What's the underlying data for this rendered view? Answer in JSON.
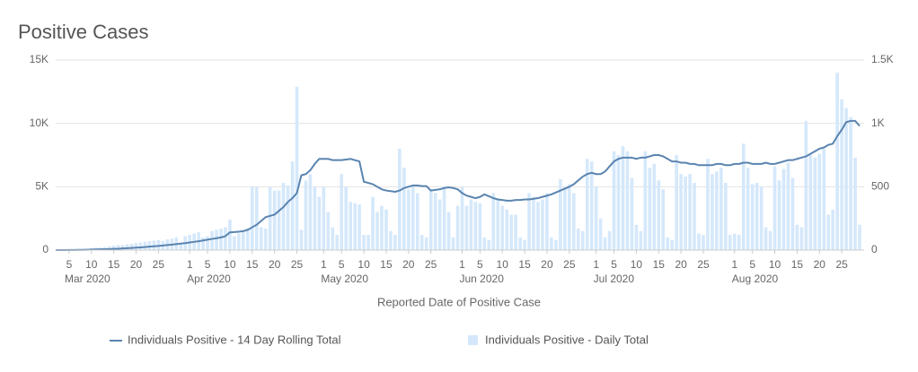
{
  "chart_data": {
    "type": "combo",
    "title": "Positive Cases",
    "x_label": "Reported Date of Positive Case",
    "grid": true,
    "legend": "bottom",
    "x": [
      "2020-03-02",
      "2020-03-03",
      "2020-03-04",
      "2020-03-05",
      "2020-03-06",
      "2020-03-07",
      "2020-03-08",
      "2020-03-09",
      "2020-03-10",
      "2020-03-11",
      "2020-03-12",
      "2020-03-13",
      "2020-03-14",
      "2020-03-15",
      "2020-03-16",
      "2020-03-17",
      "2020-03-18",
      "2020-03-19",
      "2020-03-20",
      "2020-03-21",
      "2020-03-22",
      "2020-03-23",
      "2020-03-24",
      "2020-03-25",
      "2020-03-26",
      "2020-03-27",
      "2020-03-28",
      "2020-03-29",
      "2020-03-30",
      "2020-03-31",
      "2020-04-01",
      "2020-04-02",
      "2020-04-03",
      "2020-04-04",
      "2020-04-05",
      "2020-04-06",
      "2020-04-07",
      "2020-04-08",
      "2020-04-09",
      "2020-04-10",
      "2020-04-11",
      "2020-04-12",
      "2020-04-13",
      "2020-04-14",
      "2020-04-15",
      "2020-04-16",
      "2020-04-17",
      "2020-04-18",
      "2020-04-19",
      "2020-04-20",
      "2020-04-21",
      "2020-04-22",
      "2020-04-23",
      "2020-04-24",
      "2020-04-25",
      "2020-04-26",
      "2020-04-27",
      "2020-04-28",
      "2020-04-29",
      "2020-04-30",
      "2020-05-01",
      "2020-05-02",
      "2020-05-03",
      "2020-05-04",
      "2020-05-05",
      "2020-05-06",
      "2020-05-07",
      "2020-05-08",
      "2020-05-09",
      "2020-05-10",
      "2020-05-11",
      "2020-05-12",
      "2020-05-13",
      "2020-05-14",
      "2020-05-15",
      "2020-05-16",
      "2020-05-17",
      "2020-05-18",
      "2020-05-19",
      "2020-05-20",
      "2020-05-21",
      "2020-05-22",
      "2020-05-23",
      "2020-05-24",
      "2020-05-25",
      "2020-05-26",
      "2020-05-27",
      "2020-05-28",
      "2020-05-29",
      "2020-05-30",
      "2020-05-31",
      "2020-06-01",
      "2020-06-02",
      "2020-06-03",
      "2020-06-04",
      "2020-06-05",
      "2020-06-06",
      "2020-06-07",
      "2020-06-08",
      "2020-06-09",
      "2020-06-10",
      "2020-06-11",
      "2020-06-12",
      "2020-06-13",
      "2020-06-14",
      "2020-06-15",
      "2020-06-16",
      "2020-06-17",
      "2020-06-18",
      "2020-06-19",
      "2020-06-20",
      "2020-06-21",
      "2020-06-22",
      "2020-06-23",
      "2020-06-24",
      "2020-06-25",
      "2020-06-26",
      "2020-06-27",
      "2020-06-28",
      "2020-06-29",
      "2020-06-30",
      "2020-07-01",
      "2020-07-02",
      "2020-07-03",
      "2020-07-04",
      "2020-07-05",
      "2020-07-06",
      "2020-07-07",
      "2020-07-08",
      "2020-07-09",
      "2020-07-10",
      "2020-07-11",
      "2020-07-12",
      "2020-07-13",
      "2020-07-14",
      "2020-07-15",
      "2020-07-16",
      "2020-07-17",
      "2020-07-18",
      "2020-07-19",
      "2020-07-20",
      "2020-07-21",
      "2020-07-22",
      "2020-07-23",
      "2020-07-24",
      "2020-07-25",
      "2020-07-26",
      "2020-07-27",
      "2020-07-28",
      "2020-07-29",
      "2020-07-30",
      "2020-07-31",
      "2020-08-01",
      "2020-08-02",
      "2020-08-03",
      "2020-08-04",
      "2020-08-05",
      "2020-08-06",
      "2020-08-07",
      "2020-08-08",
      "2020-08-09",
      "2020-08-10",
      "2020-08-11",
      "2020-08-12",
      "2020-08-13",
      "2020-08-14",
      "2020-08-15",
      "2020-08-16",
      "2020-08-17",
      "2020-08-18",
      "2020-08-19",
      "2020-08-20",
      "2020-08-21",
      "2020-08-22",
      "2020-08-23",
      "2020-08-24",
      "2020-08-25",
      "2020-08-26",
      "2020-08-27",
      "2020-08-28",
      "2020-08-29"
    ],
    "series": [
      {
        "name": "Individuals Positive - 14 Day Rolling Total",
        "type": "line",
        "axis": "y",
        "color": "#5a84b0",
        "values": [
          0,
          0,
          0,
          10,
          10,
          20,
          20,
          30,
          40,
          50,
          60,
          70,
          80,
          100,
          110,
          130,
          150,
          170,
          190,
          210,
          240,
          270,
          300,
          330,
          360,
          400,
          430,
          470,
          510,
          550,
          600,
          650,
          700,
          760,
          820,
          880,
          940,
          1000,
          1100,
          1400,
          1420,
          1450,
          1500,
          1600,
          1800,
          2000,
          2300,
          2600,
          2700,
          2800,
          3100,
          3400,
          3800,
          4100,
          4500,
          5900,
          6000,
          6300,
          6800,
          7200,
          7200,
          7200,
          7100,
          7100,
          7100,
          7150,
          7200,
          7100,
          7000,
          5400,
          5300,
          5200,
          5000,
          4800,
          4700,
          4650,
          4600,
          4700,
          4900,
          5000,
          5100,
          5100,
          5050,
          5050,
          4700,
          4750,
          4800,
          4900,
          4950,
          4900,
          4800,
          4500,
          4300,
          4200,
          4100,
          4200,
          4400,
          4250,
          4100,
          4000,
          3950,
          3900,
          3900,
          3950,
          3950,
          4000,
          4000,
          4050,
          4100,
          4200,
          4300,
          4400,
          4550,
          4700,
          4850,
          5000,
          5200,
          5500,
          5800,
          6000,
          6100,
          6000,
          6000,
          6200,
          6600,
          7000,
          7200,
          7300,
          7300,
          7300,
          7200,
          7300,
          7300,
          7400,
          7500,
          7500,
          7400,
          7200,
          7000,
          7000,
          6900,
          6900,
          6800,
          6800,
          6700,
          6700,
          6700,
          6700,
          6800,
          6800,
          6700,
          6700,
          6800,
          6800,
          6900,
          6900,
          6800,
          6800,
          6800,
          6900,
          6800,
          6800,
          6900,
          7000,
          7100,
          7100,
          7200,
          7300,
          7400,
          7600,
          7800,
          8000,
          8100,
          8300,
          8400,
          9000,
          9500,
          10100,
          10200,
          10200,
          9800
        ]
      },
      {
        "name": "Individuals Positive - Daily Total",
        "type": "bar",
        "axis": "y2",
        "color": "#d5e8fb",
        "values": [
          0,
          0,
          0,
          0,
          5,
          5,
          10,
          10,
          15,
          20,
          20,
          25,
          30,
          35,
          40,
          40,
          45,
          50,
          55,
          60,
          65,
          70,
          75,
          80,
          70,
          85,
          90,
          100,
          60,
          110,
          120,
          130,
          140,
          100,
          110,
          150,
          160,
          170,
          180,
          240,
          110,
          130,
          150,
          170,
          500,
          500,
          180,
          170,
          500,
          470,
          470,
          530,
          510,
          700,
          1290,
          160,
          550,
          600,
          500,
          420,
          500,
          300,
          180,
          120,
          600,
          500,
          380,
          370,
          360,
          120,
          120,
          420,
          300,
          350,
          320,
          150,
          120,
          800,
          650,
          480,
          500,
          450,
          120,
          100,
          480,
          450,
          400,
          500,
          300,
          100,
          350,
          500,
          350,
          400,
          380,
          370,
          100,
          80,
          450,
          400,
          350,
          320,
          280,
          280,
          100,
          80,
          450,
          420,
          380,
          400,
          450,
          100,
          80,
          560,
          500,
          520,
          450,
          170,
          150,
          720,
          700,
          500,
          250,
          100,
          150,
          780,
          750,
          820,
          780,
          570,
          200,
          150,
          780,
          650,
          680,
          550,
          480,
          100,
          80,
          750,
          600,
          580,
          600,
          530,
          130,
          120,
          720,
          600,
          620,
          650,
          530,
          120,
          130,
          120,
          840,
          650,
          520,
          530,
          500,
          180,
          150,
          660,
          550,
          640,
          690,
          570,
          200,
          180,
          1020,
          750,
          730,
          760,
          800,
          280,
          320,
          1400,
          1190,
          1120,
          1050,
          730,
          200
        ]
      }
    ],
    "xlim": [
      "2020-03-02",
      "2020-08-30"
    ],
    "xticks": [
      {
        "value": "2020-03-05",
        "label": "5"
      },
      {
        "value": "2020-03-10",
        "label": "10"
      },
      {
        "value": "2020-03-15",
        "label": "15"
      },
      {
        "value": "2020-03-20",
        "label": "20"
      },
      {
        "value": "2020-03-25",
        "label": "25"
      },
      {
        "value": "2020-04-01",
        "label": "1"
      },
      {
        "value": "2020-04-05",
        "label": "5"
      },
      {
        "value": "2020-04-10",
        "label": "10"
      },
      {
        "value": "2020-04-15",
        "label": "15"
      },
      {
        "value": "2020-04-20",
        "label": "20"
      },
      {
        "value": "2020-04-25",
        "label": "25"
      },
      {
        "value": "2020-05-01",
        "label": "1"
      },
      {
        "value": "2020-05-05",
        "label": "5"
      },
      {
        "value": "2020-05-10",
        "label": "10"
      },
      {
        "value": "2020-05-15",
        "label": "15"
      },
      {
        "value": "2020-05-20",
        "label": "20"
      },
      {
        "value": "2020-05-25",
        "label": "25"
      },
      {
        "value": "2020-06-01",
        "label": "1"
      },
      {
        "value": "2020-06-05",
        "label": "5"
      },
      {
        "value": "2020-06-10",
        "label": "10"
      },
      {
        "value": "2020-06-15",
        "label": "15"
      },
      {
        "value": "2020-06-20",
        "label": "20"
      },
      {
        "value": "2020-06-25",
        "label": "25"
      },
      {
        "value": "2020-07-01",
        "label": "1"
      },
      {
        "value": "2020-07-05",
        "label": "5"
      },
      {
        "value": "2020-07-10",
        "label": "10"
      },
      {
        "value": "2020-07-15",
        "label": "15"
      },
      {
        "value": "2020-07-20",
        "label": "20"
      },
      {
        "value": "2020-07-25",
        "label": "25"
      },
      {
        "value": "2020-08-01",
        "label": "1"
      },
      {
        "value": "2020-08-05",
        "label": "5"
      },
      {
        "value": "2020-08-10",
        "label": "10"
      },
      {
        "value": "2020-08-15",
        "label": "15"
      },
      {
        "value": "2020-08-20",
        "label": "20"
      },
      {
        "value": "2020-08-25",
        "label": "25"
      }
    ],
    "month_ticks": [
      {
        "value": "2020-03-01",
        "label": "Mar 2020"
      },
      {
        "value": "2020-04-01",
        "label": "Apr 2020"
      },
      {
        "value": "2020-05-01",
        "label": "May 2020"
      },
      {
        "value": "2020-06-01",
        "label": "Jun 2020"
      },
      {
        "value": "2020-07-01",
        "label": "Jul 2020"
      },
      {
        "value": "2020-08-01",
        "label": "Aug 2020"
      }
    ],
    "ylim": [
      0,
      15000
    ],
    "yticks": [
      0,
      {
        "value": 5000,
        "label": "5K"
      },
      {
        "value": 10000,
        "label": "10K"
      },
      {
        "value": 15000,
        "label": "15K"
      }
    ],
    "y2lim": [
      0,
      1500
    ],
    "y2ticks": [
      0,
      500,
      {
        "value": 1000,
        "label": "1K"
      },
      {
        "value": 1500,
        "label": "1.5K"
      }
    ]
  }
}
